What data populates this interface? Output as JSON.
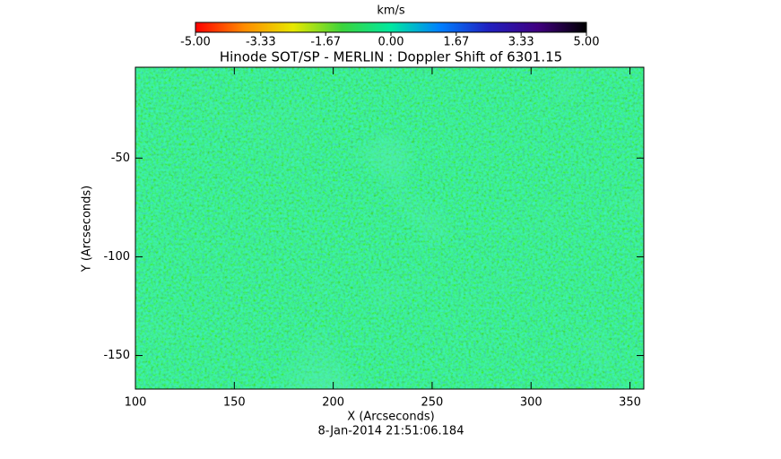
{
  "chart_data": {
    "type": "image",
    "title": "Hinode SOT/SP - MERLIN : Doppler Shift of 6301.15",
    "xlabel": "X (Arcseconds)",
    "ylabel": "Y (Arcseconds)",
    "footer": "8-Jan-2014 21:51:06.184",
    "xlim": [
      100,
      357
    ],
    "ylim": [
      -167,
      -4
    ],
    "xticks": [
      100,
      150,
      200,
      250,
      300,
      350
    ],
    "yticks": [
      -50,
      -100,
      -150
    ],
    "colorbar": {
      "label": "km/s",
      "lim": [
        -5,
        5
      ],
      "ticks": [
        {
          "value": -5,
          "label": "-5.00"
        },
        {
          "value": -3.33,
          "label": "-3.33"
        },
        {
          "value": -1.67,
          "label": "-1.67"
        },
        {
          "value": 0,
          "label": "0.00"
        },
        {
          "value": 1.67,
          "label": "1.67"
        },
        {
          "value": 3.33,
          "label": "3.33"
        },
        {
          "value": 5,
          "label": "5.00"
        }
      ],
      "colors": [
        "#ff0000",
        "#ff8c00",
        "#e8e800",
        "#3cd43c",
        "#00e8a0",
        "#0080ff",
        "#2020c0",
        "#400080",
        "#000000"
      ]
    }
  }
}
